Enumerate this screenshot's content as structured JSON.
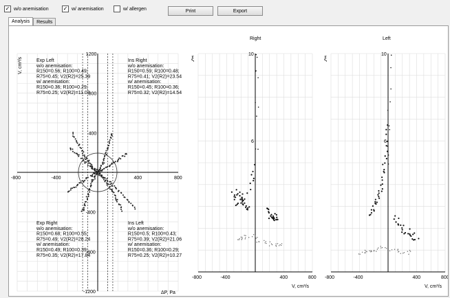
{
  "toolbar": {
    "checkboxes": [
      {
        "label": "w/o anemisation",
        "checked": true
      },
      {
        "label": "w/ anemisation",
        "checked": true
      },
      {
        "label": "w/ allergen",
        "checked": false
      }
    ],
    "print_label": "Print",
    "export_label": "Export"
  },
  "tabs": [
    {
      "label": "Analysis",
      "active": true
    },
    {
      "label": "Results",
      "active": false
    }
  ],
  "chart_data": [
    {
      "type": "scatter",
      "xlabel": "ΔP, Pa",
      "ylabel": "V, cm³/s",
      "xlim": [
        -800,
        800
      ],
      "ylim": [
        -1200,
        1200
      ],
      "x_ticks": [
        "-800",
        "-400",
        "400",
        "800"
      ],
      "y_ticks": [
        "1200",
        "800",
        "400",
        "-400",
        "-800",
        "-1200"
      ],
      "annotations": {
        "exp_left": [
          "Exp Left",
          "w/o anemisation:",
          "R150=0.56; R100=0.49;",
          "R75=0.45; V2(R2)=25.39",
          "w/ anemisation:",
          "R150=0.36; R100=0.29;",
          "R75=0.25; V2(R2)=11.03"
        ],
        "ins_right": [
          "Ins Right",
          "w/o anemisation:",
          "R150=0.59; R100=0.48;",
          "R75=0.41; V2(R2)=23.54",
          "w/ anemisation:",
          "R150=0.45; R100=0.36;",
          "R75=0.32; V2(R2)=14.54"
        ],
        "exp_right": [
          "Exp Right",
          "w/o anemisation:",
          "R150=0.68; R100=0.55;",
          "R75=0.49; V2(R2)=28.24",
          "w/ anemisation:",
          "R150=0.49; R100=0.39;",
          "R75=0.35; V2(R2)=17.84"
        ],
        "ins_left": [
          "Ins Left",
          "w/o anemisation:",
          "R150=0.5; R100=0.43;",
          "R75=0.39; V2(R2)=21.06",
          "w/ anemisation:",
          "R150=0.36; R100=0.29;",
          "R75=0.25; V2(R2)=10.27"
        ]
      },
      "series": [
        {
          "points": [
            [
              -150,
              -400
            ],
            [
              -120,
              -300
            ],
            [
              -90,
              -200
            ],
            [
              -60,
              -110
            ],
            [
              -30,
              -40
            ],
            [
              0,
              0
            ],
            [
              30,
              40
            ],
            [
              60,
              110
            ],
            [
              90,
              200
            ],
            [
              120,
              300
            ],
            [
              150,
              400
            ]
          ]
        },
        {
          "points": [
            [
              -250,
              400
            ],
            [
              -200,
              300
            ],
            [
              -150,
              200
            ],
            [
              -100,
              120
            ],
            [
              -50,
              50
            ],
            [
              0,
              0
            ],
            [
              50,
              -50
            ],
            [
              100,
              -120
            ],
            [
              150,
              -200
            ],
            [
              200,
              -300
            ],
            [
              250,
              -400
            ]
          ]
        },
        {
          "points": [
            [
              -280,
              250
            ],
            [
              -200,
              180
            ],
            [
              -120,
              100
            ],
            [
              -50,
              40
            ],
            [
              0,
              0
            ],
            [
              50,
              -40
            ],
            [
              120,
              -100
            ],
            [
              200,
              -180
            ],
            [
              300,
              -280
            ],
            [
              380,
              -380
            ]
          ]
        },
        {
          "points": [
            [
              -300,
              -200
            ],
            [
              -220,
              -140
            ],
            [
              -140,
              -80
            ],
            [
              -60,
              -30
            ],
            [
              0,
              0
            ],
            [
              60,
              30
            ],
            [
              140,
              80
            ],
            [
              220,
              140
            ],
            [
              300,
              200
            ]
          ]
        }
      ]
    },
    {
      "type": "scatter",
      "title": "Right",
      "xlabel": "V, cm³/s",
      "ylabel": "ξ",
      "xlim": [
        -800,
        800
      ],
      "ylim": [
        0,
        10
      ],
      "x_ticks": [
        "-800",
        "-400",
        "400",
        "800"
      ],
      "y_ticks": [
        "10",
        "6"
      ],
      "series": [
        {
          "points": [
            [
              -250,
              3.7
            ],
            [
              -200,
              3.4
            ],
            [
              -150,
              3.1
            ],
            [
              -100,
              2.9
            ],
            [
              -300,
              3.6
            ],
            [
              -250,
              3.0
            ],
            [
              -50,
              4.0
            ],
            [
              -20,
              5.0
            ]
          ]
        },
        {
          "points": [
            [
              200,
              2.6
            ],
            [
              250,
              2.4
            ],
            [
              300,
              2.5
            ],
            [
              150,
              2.9
            ],
            [
              350,
              2.3
            ]
          ]
        },
        {
          "points": [
            [
              -150,
              1.6
            ],
            [
              -250,
              1.5
            ],
            [
              -50,
              1.7
            ],
            [
              50,
              1.4
            ],
            [
              200,
              1.3
            ],
            [
              300,
              1.2
            ],
            [
              400,
              1.3
            ]
          ]
        }
      ]
    },
    {
      "type": "scatter",
      "title": "Left",
      "xlabel": "V, cm³/s",
      "ylabel": "ξ",
      "xlim": [
        -800,
        800
      ],
      "ylim": [
        0,
        10
      ],
      "x_ticks": [
        "-800",
        "-400",
        "400",
        "800"
      ],
      "y_ticks": [
        "10",
        "6"
      ],
      "series": [
        {
          "points": [
            [
              -250,
              2.6
            ],
            [
              -200,
              3.0
            ],
            [
              -150,
              3.4
            ],
            [
              -100,
              3.8
            ],
            [
              -60,
              4.6
            ],
            [
              -30,
              5.5
            ],
            [
              -10,
              7.0
            ]
          ]
        },
        {
          "points": [
            [
              100,
              2.4
            ],
            [
              200,
              1.9
            ],
            [
              300,
              1.7
            ],
            [
              400,
              1.5
            ],
            [
              50,
              2.8
            ]
          ]
        },
        {
          "points": [
            [
              -400,
              0.9
            ],
            [
              -300,
              0.9
            ],
            [
              -200,
              0.95
            ],
            [
              -100,
              1.1
            ],
            [
              100,
              1.0
            ],
            [
              200,
              0.9
            ],
            [
              350,
              0.9
            ]
          ]
        }
      ]
    }
  ]
}
